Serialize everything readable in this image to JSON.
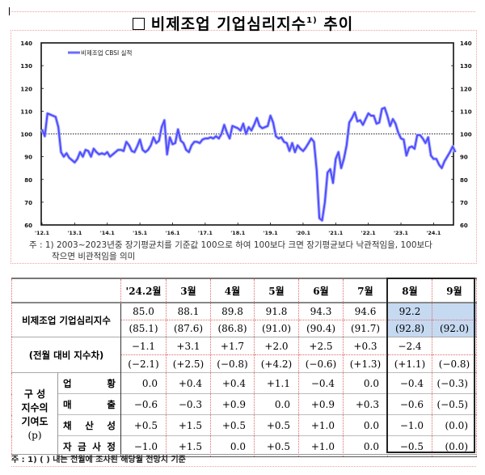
{
  "title": {
    "prefix_glyph": "□",
    "text": "비제조업 기업심리지수",
    "superscript": "1)",
    "suffix": "추이"
  },
  "chart_data": {
    "type": "line",
    "title": "비제조업 기업심리지수 추이",
    "legend": [
      "비제조업 CBSI 실적"
    ],
    "legend_position": "top-left",
    "xlabel": "",
    "ylabel": "",
    "ylim": [
      60,
      140
    ],
    "y_ticks": [
      60,
      70,
      80,
      90,
      100,
      110,
      120,
      130,
      140
    ],
    "x_tick_labels": [
      "'12.1",
      "'13.1",
      "'14.1",
      "'15.1",
      "'16.1",
      "'17.1",
      "'18.1",
      "'19.1",
      "'20.1",
      "'21.1",
      "'22.1",
      "'23.1",
      "'24.1"
    ],
    "reference_line": {
      "value": 100,
      "style": "dotted"
    },
    "grid": false,
    "series": [
      {
        "name": "비제조업 CBSI 실적",
        "color": "#5b5bff",
        "start": "2012-01",
        "end": "2024-08",
        "values": [
          102.0,
          99.0,
          109.0,
          108.5,
          108.0,
          107.5,
          103.0,
          92.0,
          90.0,
          91.5,
          89.5,
          88.5,
          87.5,
          89.0,
          92.0,
          90.0,
          93.0,
          92.5,
          90.0,
          93.5,
          92.0,
          91.0,
          91.5,
          91.0,
          92.0,
          90.0,
          91.0,
          92.0,
          93.0,
          93.0,
          92.5,
          96.5,
          95.0,
          92.5,
          92.0,
          94.5,
          97.5,
          93.0,
          92.0,
          93.0,
          95.0,
          98.5,
          96.0,
          97.0,
          103.0,
          106.0,
          91.0,
          98.5,
          95.5,
          96.0,
          102.0,
          97.0,
          96.0,
          93.0,
          92.0,
          95.0,
          96.5,
          96.5,
          96.0,
          97.5,
          98.0,
          98.0,
          98.5,
          98.0,
          99.0,
          98.0,
          100.0,
          104.0,
          100.5,
          98.0,
          103.5,
          103.0,
          102.5,
          101.5,
          104.5,
          100.0,
          103.0,
          101.5,
          104.0,
          107.0,
          103.5,
          102.5,
          103.0,
          103.5,
          108.0,
          105.0,
          99.0,
          98.0,
          98.5,
          96.5,
          96.0,
          92.5,
          96.0,
          92.0,
          95.0,
          93.5,
          92.5,
          94.0,
          96.0,
          98.0,
          96.5,
          84.0,
          63.0,
          62.0,
          70.0,
          83.0,
          84.5,
          78.5,
          89.0,
          92.0,
          85.0,
          89.0,
          95.0,
          105.0,
          107.0,
          109.5,
          105.5,
          106.0,
          104.0,
          106.5,
          109.0,
          108.0,
          108.0,
          104.5,
          105.0,
          111.0,
          111.5,
          108.0,
          103.5,
          106.5,
          104.5,
          100.5,
          98.0,
          97.5,
          90.5,
          94.0,
          94.5,
          93.5,
          99.5,
          99.5,
          98.0,
          96.0,
          98.5,
          90.5,
          89.0,
          89.0,
          86.5,
          85.0,
          88.0,
          90.0,
          92.0,
          94.5,
          92.0
        ]
      }
    ]
  },
  "chart": {
    "legend_label": "비제조업 CBSI 실적",
    "y_ticks": [
      "140",
      "130",
      "120",
      "110",
      "100",
      "90",
      "80",
      "70",
      "60"
    ],
    "x_ticks": [
      "'12.1",
      "'13.1",
      "'14.1",
      "'15.1",
      "'16.1",
      "'17.1",
      "'18.1",
      "'19.1",
      "'20.1",
      "'21.1",
      "'22.1",
      "'23.1",
      "'24.1"
    ]
  },
  "chart_note": {
    "line1": "주 : 1) 2003~2023년중 장기평균치를 기준값 100으로 하여 100보다 크면 장기평균보다 낙관적임을, 100보다",
    "line2": "작으면 비관적임을 의미"
  },
  "table": {
    "columns": [
      "'24.2월",
      "3월",
      "4월",
      "5월",
      "6월",
      "7월",
      "8월",
      "9월"
    ],
    "highlight_color": "#c5d9f1",
    "index_row": {
      "label": "비제조업 기업심리지수",
      "actual": [
        "85.0",
        "88.1",
        "89.8",
        "91.8",
        "94.3",
        "94.6",
        "92.2",
        ""
      ],
      "forecast": [
        "(85.1)",
        "(87.6)",
        "(86.8)",
        "(91.0)",
        "(90.4)",
        "(91.7)",
        "(92.8)",
        "(92.0)"
      ]
    },
    "diff_row": {
      "label": "(전월 대비 지수차)",
      "actual": [
        "−1.1",
        "+3.1",
        "+1.7",
        "+2.0",
        "+2.5",
        "+0.3",
        "−2.4",
        ""
      ],
      "forecast": [
        "(−2.1)",
        "(+2.5)",
        "(−0.8)",
        "(+4.2)",
        "(−0.6)",
        "(+1.3)",
        "(+1.1)",
        "(−0.8)"
      ]
    },
    "contribution": {
      "group_label_lines": [
        "구 성",
        "지수의",
        "기여도",
        "(p)"
      ],
      "rows": [
        {
          "label": "업 황",
          "values": [
            "0.0",
            "+0.4",
            "+0.4",
            "+1.1",
            "−0.4",
            "0.0",
            "−0.4",
            "(−0.3)"
          ]
        },
        {
          "label": "매 출",
          "values": [
            "−0.6",
            "−0.3",
            "+0.9",
            "0.0",
            "+0.9",
            "+0.3",
            "−0.6",
            "(−0.5)"
          ]
        },
        {
          "label": "채 산 성",
          "values": [
            "+0.5",
            "+1.5",
            "+0.5",
            "+0.5",
            "+1.0",
            "0.0",
            "−1.0",
            "(0.0)"
          ]
        },
        {
          "label": "자 금 사 정",
          "values": [
            "−1.0",
            "+1.5",
            "0.0",
            "+0.5",
            "+1.0",
            "0.0",
            "−0.5",
            "(0.0)"
          ]
        }
      ]
    },
    "note": "주 : 1) (    ) 내는 전월에 조사된 해당월 전망치 기준"
  }
}
